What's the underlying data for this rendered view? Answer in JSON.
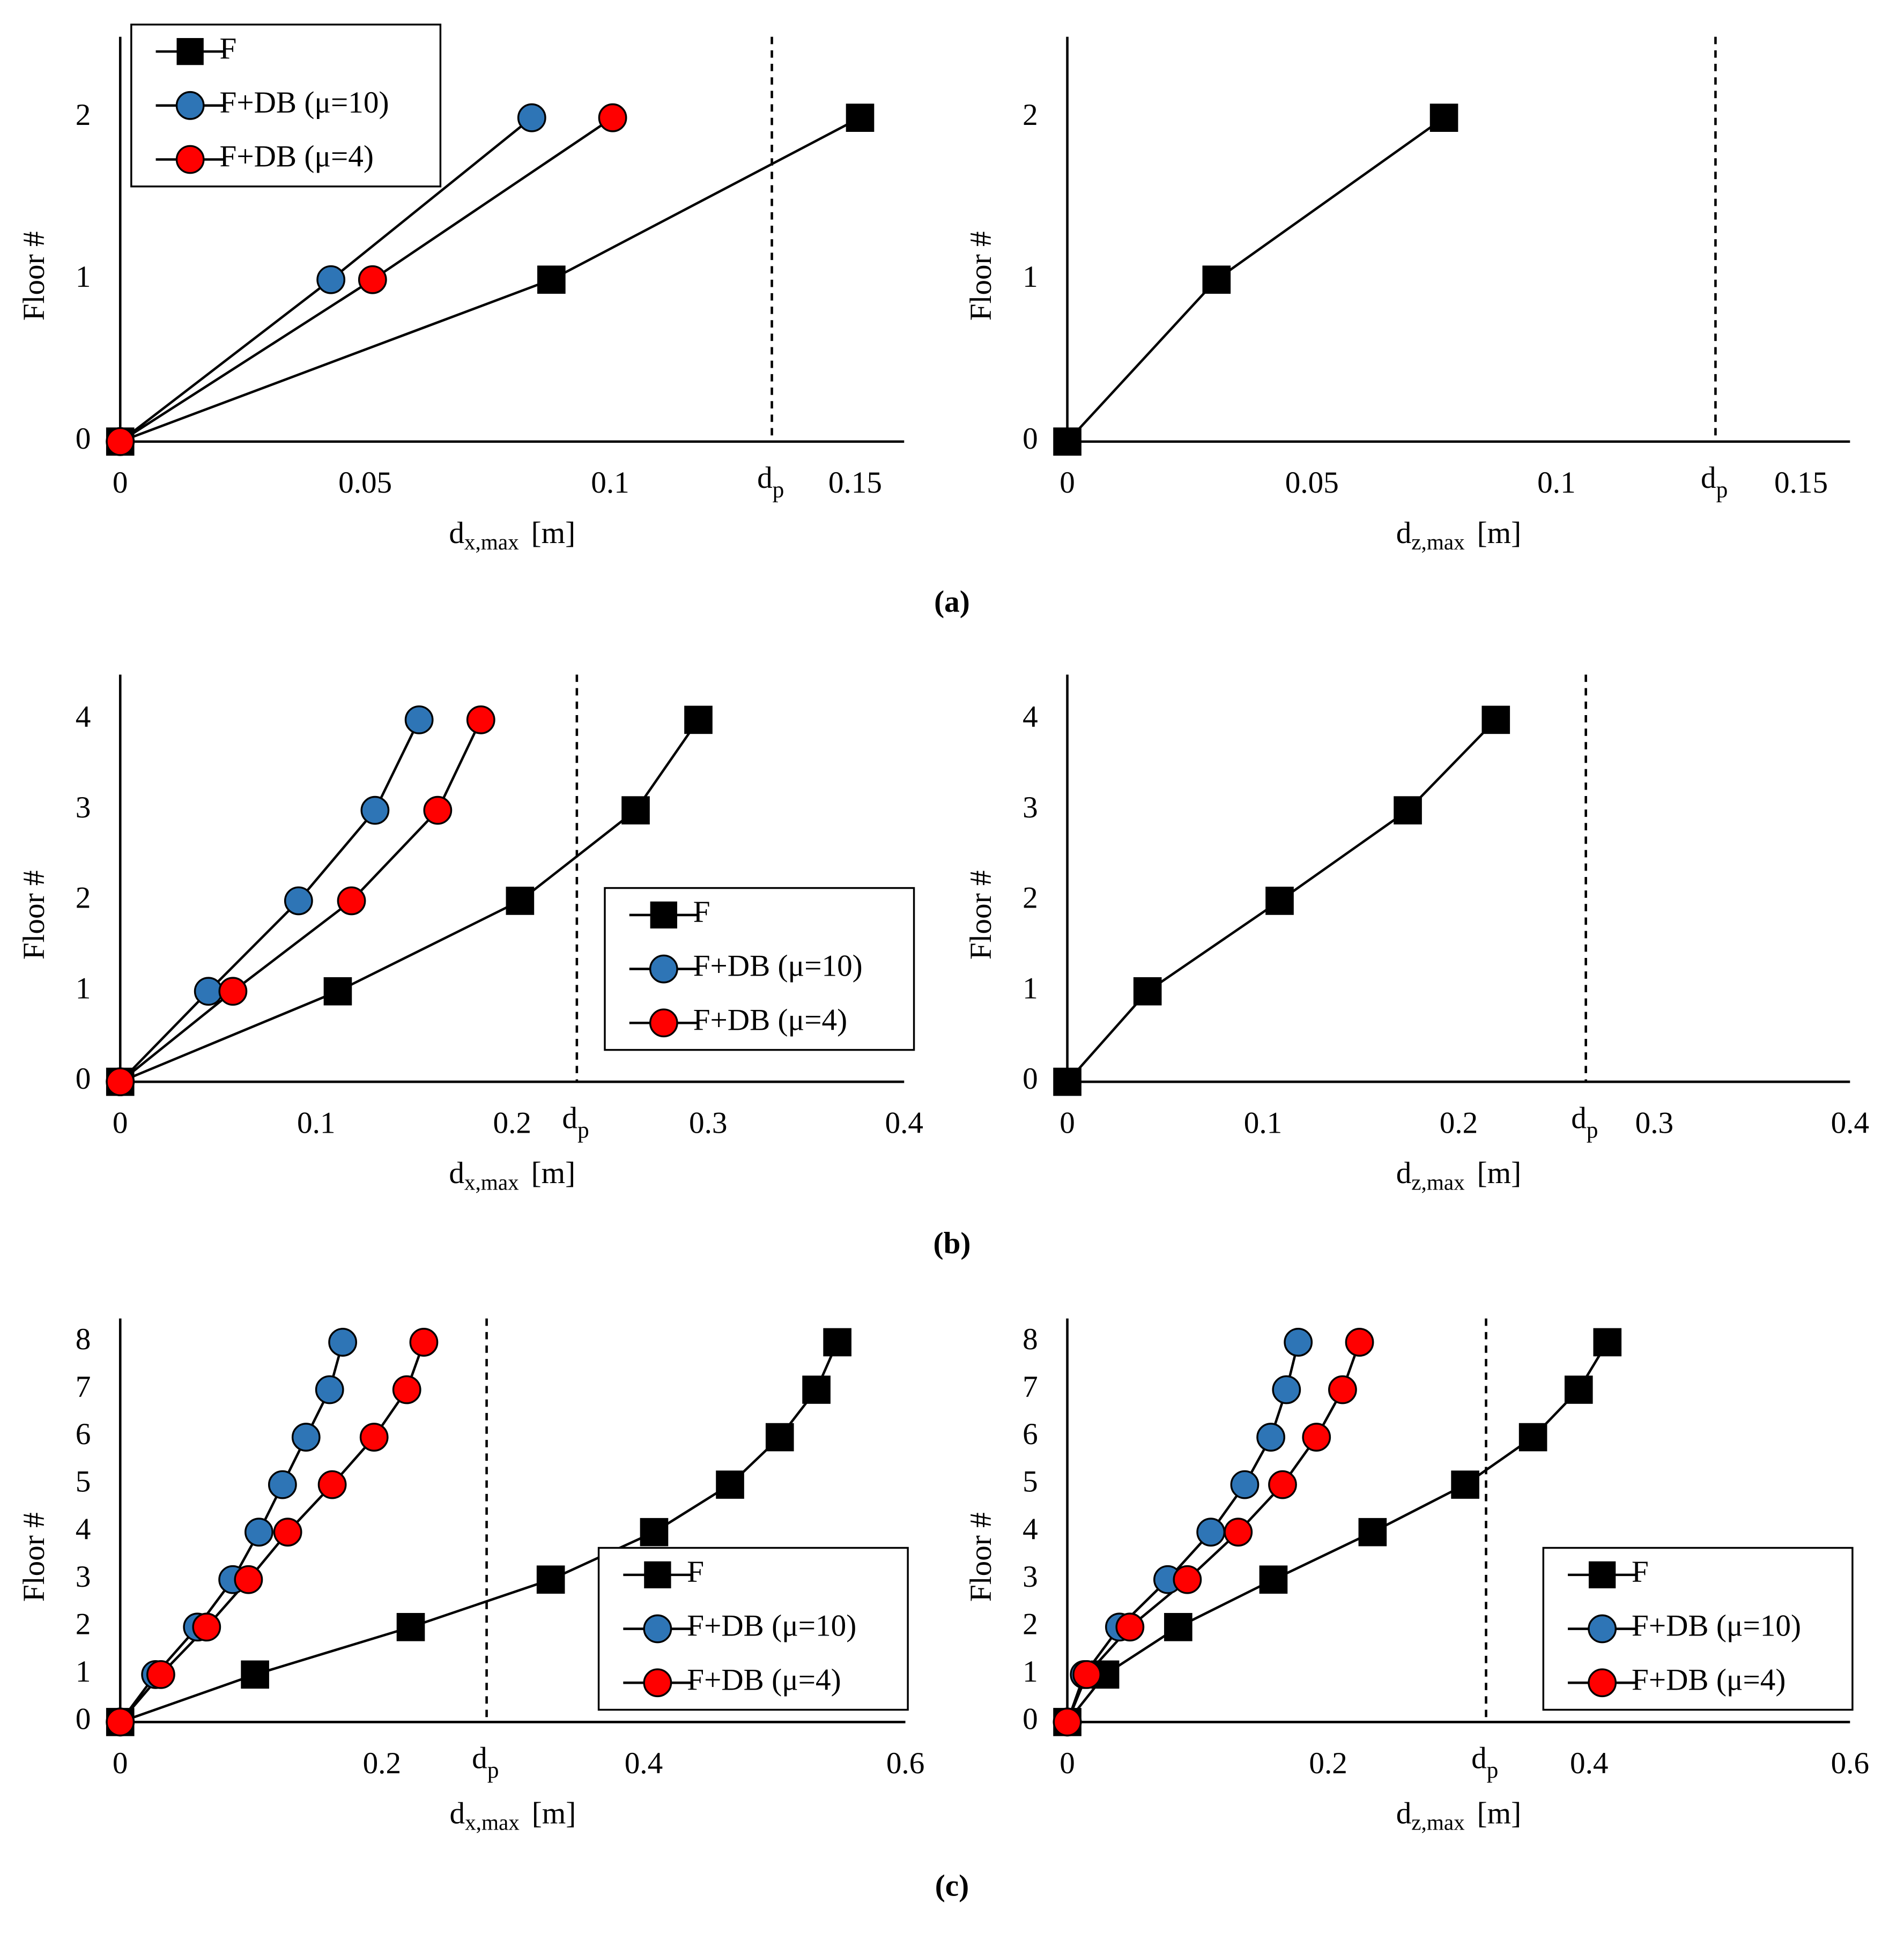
{
  "captions": [
    "(a)",
    "(b)",
    "(c)"
  ],
  "chart_data": [
    {
      "type": "line",
      "ylabel": "Floor #",
      "xlabel": {
        "main": "d",
        "sub": "x,max",
        "unit": "[m]"
      },
      "xlim": [
        0,
        0.16
      ],
      "xticks": [
        0,
        0.05,
        0.1,
        0.15
      ],
      "ylim": [
        0,
        2.5
      ],
      "yticks": [
        0,
        1,
        2
      ],
      "threshold": {
        "value": 0.133,
        "label": "d",
        "label_sub": "p"
      },
      "legend": "upper left",
      "series": [
        {
          "name": "F",
          "color": "#000000",
          "marker": "square",
          "x": [
            0,
            0.088,
            0.151
          ],
          "values": [
            0,
            1,
            2
          ]
        },
        {
          "name": "F+DB (μ=10)",
          "color": "#2E75B6",
          "marker": "circle",
          "x": [
            0,
            0.043,
            0.084
          ],
          "values": [
            0,
            1,
            2
          ]
        },
        {
          "name": "F+DB (μ=4)",
          "color": "#FF0000",
          "marker": "circle",
          "x": [
            0,
            0.0515,
            0.1005
          ],
          "values": [
            0,
            1,
            2
          ]
        }
      ]
    },
    {
      "type": "line",
      "ylabel": "Floor #",
      "xlabel": {
        "main": "d",
        "sub": "z,max",
        "unit": "[m]"
      },
      "xlim": [
        0,
        0.16
      ],
      "xticks": [
        0,
        0.05,
        0.1,
        0.15
      ],
      "ylim": [
        0,
        2.5
      ],
      "yticks": [
        0,
        1,
        2
      ],
      "threshold": {
        "value": 0.1325,
        "label": "d",
        "label_sub": "p"
      },
      "legend": null,
      "series": [
        {
          "name": "F",
          "color": "#000000",
          "marker": "square",
          "x": [
            0,
            0.0305,
            0.077
          ],
          "values": [
            0,
            1,
            2
          ]
        }
      ]
    },
    {
      "type": "line",
      "ylabel": "Floor #",
      "xlabel": {
        "main": "d",
        "sub": "x,max",
        "unit": "[m]"
      },
      "xlim": [
        0,
        0.4
      ],
      "xticks": [
        0,
        0.1,
        0.2,
        0.3,
        0.4
      ],
      "ylim": [
        0,
        4.5
      ],
      "yticks": [
        0,
        1,
        2,
        3,
        4
      ],
      "threshold": {
        "value": 0.233,
        "label": "d",
        "label_sub": "p"
      },
      "legend": "center right",
      "series": [
        {
          "name": "F",
          "color": "#000000",
          "marker": "square",
          "x": [
            0,
            0.111,
            0.204,
            0.263,
            0.295
          ],
          "values": [
            0,
            1,
            2,
            3,
            4
          ]
        },
        {
          "name": "F+DB (μ=10)",
          "color": "#2E75B6",
          "marker": "circle",
          "x": [
            0,
            0.045,
            0.091,
            0.13,
            0.1525
          ],
          "values": [
            0,
            1,
            2,
            3,
            4
          ]
        },
        {
          "name": "F+DB (μ=4)",
          "color": "#FF0000",
          "marker": "circle",
          "x": [
            0,
            0.0575,
            0.118,
            0.162,
            0.184
          ],
          "values": [
            0,
            1,
            2,
            3,
            4
          ]
        }
      ]
    },
    {
      "type": "line",
      "ylabel": "Floor #",
      "xlabel": {
        "main": "d",
        "sub": "z,max",
        "unit": "[m]"
      },
      "xlim": [
        0,
        0.4
      ],
      "xticks": [
        0,
        0.1,
        0.2,
        0.3,
        0.4
      ],
      "ylim": [
        0,
        4.5
      ],
      "yticks": [
        0,
        1,
        2,
        3,
        4
      ],
      "threshold": {
        "value": 0.265,
        "label": "d",
        "label_sub": "p"
      },
      "legend": null,
      "series": [
        {
          "name": "F",
          "color": "#000000",
          "marker": "square",
          "x": [
            0,
            0.041,
            0.1085,
            0.174,
            0.219
          ],
          "values": [
            0,
            1,
            2,
            3,
            4
          ]
        }
      ]
    },
    {
      "type": "line",
      "ylabel": "Floor #",
      "xlabel": {
        "main": "d",
        "sub": "x,max",
        "unit": "[m]"
      },
      "xlim": [
        0,
        0.6
      ],
      "xticks": [
        0,
        0.2,
        0.4,
        0.6
      ],
      "ylim": [
        0,
        8.5
      ],
      "yticks": [
        0,
        1,
        2,
        3,
        4,
        5,
        6,
        7,
        8
      ],
      "threshold": {
        "value": 0.28,
        "label": "d",
        "label_sub": "p"
      },
      "legend": "lower right",
      "series": [
        {
          "name": "F",
          "color": "#000000",
          "marker": "square",
          "x": [
            0,
            0.103,
            0.222,
            0.329,
            0.408,
            0.466,
            0.504,
            0.532,
            0.548
          ],
          "values": [
            0,
            1,
            2,
            3,
            4,
            5,
            6,
            7,
            8
          ]
        },
        {
          "name": "F+DB (μ=10)",
          "color": "#2E75B6",
          "marker": "circle",
          "x": [
            0,
            0.027,
            0.059,
            0.086,
            0.106,
            0.124,
            0.142,
            0.16,
            0.17
          ],
          "values": [
            0,
            1,
            2,
            3,
            4,
            5,
            6,
            7,
            8
          ]
        },
        {
          "name": "F+DB (μ=4)",
          "color": "#FF0000",
          "marker": "circle",
          "x": [
            0,
            0.031,
            0.066,
            0.098,
            0.128,
            0.162,
            0.194,
            0.219,
            0.232
          ],
          "values": [
            0,
            1,
            2,
            3,
            4,
            5,
            6,
            7,
            8
          ]
        }
      ]
    },
    {
      "type": "line",
      "ylabel": "Floor #",
      "xlabel": {
        "main": "d",
        "sub": "z,max",
        "unit": "[m]"
      },
      "xlim": [
        0,
        0.6
      ],
      "xticks": [
        0,
        0.2,
        0.4,
        0.6
      ],
      "ylim": [
        0,
        8.5
      ],
      "yticks": [
        0,
        1,
        2,
        3,
        4,
        5,
        6,
        7,
        8
      ],
      "threshold": {
        "value": 0.321,
        "label": "d",
        "label_sub": "p"
      },
      "legend": "lower right",
      "series": [
        {
          "name": "F",
          "color": "#000000",
          "marker": "square",
          "x": [
            0,
            0.029,
            0.085,
            0.158,
            0.234,
            0.305,
            0.357,
            0.392,
            0.414
          ],
          "values": [
            0,
            1,
            2,
            3,
            4,
            5,
            6,
            7,
            8
          ]
        },
        {
          "name": "F+DB (μ=10)",
          "color": "#2E75B6",
          "marker": "circle",
          "x": [
            0,
            0.013,
            0.04,
            0.077,
            0.11,
            0.136,
            0.156,
            0.168,
            0.177
          ],
          "values": [
            0,
            1,
            2,
            3,
            4,
            5,
            6,
            7,
            8
          ]
        },
        {
          "name": "F+DB (μ=4)",
          "color": "#FF0000",
          "marker": "circle",
          "x": [
            0,
            0.015,
            0.048,
            0.092,
            0.131,
            0.165,
            0.191,
            0.211,
            0.224
          ],
          "values": [
            0,
            1,
            2,
            3,
            4,
            5,
            6,
            7,
            8
          ]
        }
      ]
    }
  ]
}
